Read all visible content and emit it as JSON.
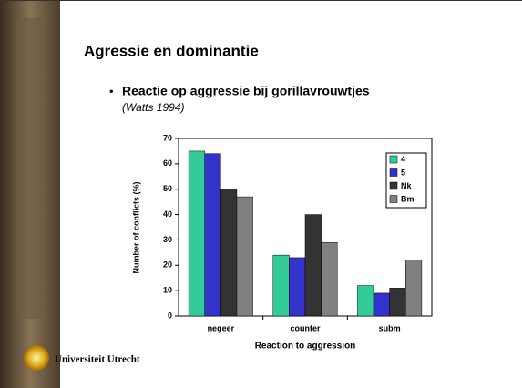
{
  "slide": {
    "title": "Agressie en dominantie",
    "bullet": "Reactie op aggressie bij gorillavrouwtjes",
    "reference": "(Watts 1994)",
    "logo_text": "Universiteit Utrecht"
  },
  "chart_data": {
    "type": "bar",
    "categories": [
      "negeer",
      "counter",
      "subm"
    ],
    "series": [
      {
        "name": "4",
        "color": "#33cc99",
        "values": [
          65,
          24,
          12
        ]
      },
      {
        "name": "5",
        "color": "#3333cc",
        "values": [
          64,
          23,
          9
        ]
      },
      {
        "name": "Nk",
        "color": "#333333",
        "values": [
          50,
          40,
          11
        ]
      },
      {
        "name": "Bm",
        "color": "#808080",
        "values": [
          47,
          29,
          22
        ]
      }
    ],
    "ylabel": "Number of conflicts (%)",
    "xlabel": "Reaction to aggression",
    "ylim": [
      0,
      70
    ],
    "yticks": [
      0,
      10,
      20,
      30,
      40,
      50,
      60,
      70
    ],
    "legend": "upper right"
  }
}
